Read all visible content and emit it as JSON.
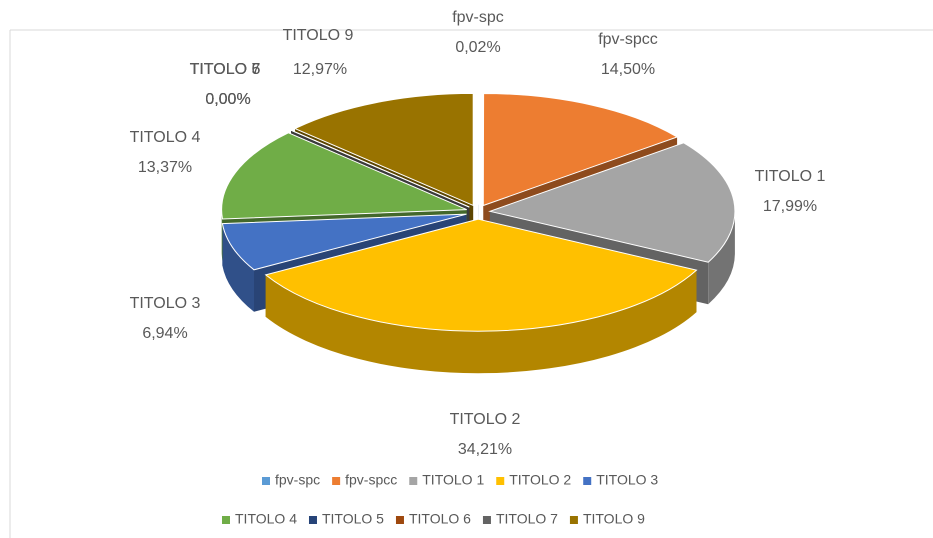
{
  "chart_data": {
    "type": "pie",
    "categories": [
      "fpv-spc",
      "fpv-spcc",
      "TITOLO 1",
      "TITOLO 2",
      "TITOLO 3",
      "TITOLO 4",
      "TITOLO 5",
      "TITOLO 6",
      "TITOLO 7",
      "TITOLO 9"
    ],
    "values": [
      0.02,
      14.5,
      17.99,
      34.21,
      6.94,
      13.37,
      0.0,
      0.0,
      0.0,
      12.97
    ],
    "value_labels": [
      "0,02%",
      "14,50%",
      "17,99%",
      "34,21%",
      "6,94%",
      "13,37%",
      "0,00%",
      "0,00%",
      "0,00%",
      "12,97%"
    ],
    "colors": [
      "#5b9bd5",
      "#ed7d31",
      "#a5a5a5",
      "#ffc000",
      "#4472c4",
      "#70ad47",
      "#264478",
      "#9e480e",
      "#636363",
      "#997300"
    ],
    "legend": "bottom"
  }
}
